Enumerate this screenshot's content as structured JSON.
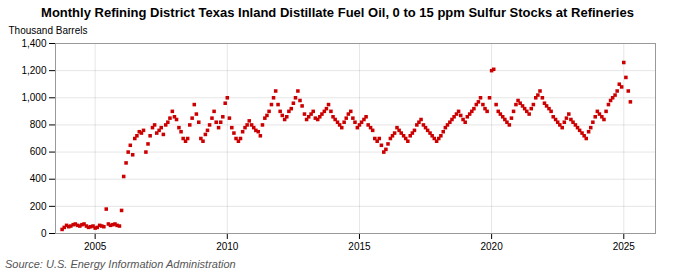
{
  "chart_data": {
    "type": "scatter",
    "title": "Monthly Refining District Texas Inland Distillate Fuel Oil, 0 to 15 ppm Sulfur Stocks at Refineries",
    "ylabel": "Thousand Barrels",
    "source": "Source: U.S. Energy Information Administration",
    "color": "#cc0000",
    "marker": "square",
    "grid": true,
    "xlim": [
      2003.5,
      2026.2
    ],
    "ylim": [
      0,
      1400
    ],
    "xticks": [
      2005,
      2010,
      2015,
      2020,
      2025
    ],
    "yticks": [
      0,
      200,
      400,
      600,
      800,
      {
        "value": 1000,
        "label": "1,000"
      },
      {
        "value": 1200,
        "label": "1,200"
      },
      {
        "value": 1400,
        "label": "1,400"
      }
    ],
    "x": [
      2003.75,
      2003.83,
      2003.92,
      2004.0,
      2004.08,
      2004.17,
      2004.25,
      2004.33,
      2004.42,
      2004.5,
      2004.58,
      2004.67,
      2004.75,
      2004.83,
      2004.92,
      2005.0,
      2005.08,
      2005.17,
      2005.25,
      2005.33,
      2005.42,
      2005.5,
      2005.58,
      2005.67,
      2005.75,
      2005.83,
      2005.92,
      2006.0,
      2006.08,
      2006.17,
      2006.25,
      2006.33,
      2006.42,
      2006.5,
      2006.58,
      2006.67,
      2006.75,
      2006.83,
      2006.92,
      2007.0,
      2007.08,
      2007.17,
      2007.25,
      2007.33,
      2007.42,
      2007.5,
      2007.58,
      2007.67,
      2007.75,
      2007.83,
      2007.92,
      2008.0,
      2008.08,
      2008.17,
      2008.25,
      2008.33,
      2008.42,
      2008.5,
      2008.58,
      2008.67,
      2008.75,
      2008.83,
      2008.92,
      2009.0,
      2009.08,
      2009.17,
      2009.25,
      2009.33,
      2009.42,
      2009.5,
      2009.58,
      2009.67,
      2009.75,
      2009.83,
      2009.92,
      2010.0,
      2010.08,
      2010.17,
      2010.25,
      2010.33,
      2010.42,
      2010.5,
      2010.58,
      2010.67,
      2010.75,
      2010.83,
      2010.92,
      2011.0,
      2011.08,
      2011.17,
      2011.25,
      2011.33,
      2011.42,
      2011.5,
      2011.58,
      2011.67,
      2011.75,
      2011.83,
      2011.92,
      2012.0,
      2012.08,
      2012.17,
      2012.25,
      2012.33,
      2012.42,
      2012.5,
      2012.58,
      2012.67,
      2012.75,
      2012.83,
      2012.92,
      2013.0,
      2013.08,
      2013.17,
      2013.25,
      2013.33,
      2013.42,
      2013.5,
      2013.58,
      2013.67,
      2013.75,
      2013.83,
      2013.92,
      2014.0,
      2014.08,
      2014.17,
      2014.25,
      2014.33,
      2014.42,
      2014.5,
      2014.58,
      2014.67,
      2014.75,
      2014.83,
      2014.92,
      2015.0,
      2015.08,
      2015.17,
      2015.25,
      2015.33,
      2015.42,
      2015.5,
      2015.58,
      2015.67,
      2015.75,
      2015.83,
      2015.92,
      2016.0,
      2016.08,
      2016.17,
      2016.25,
      2016.33,
      2016.42,
      2016.5,
      2016.58,
      2016.67,
      2016.75,
      2016.83,
      2016.92,
      2017.0,
      2017.08,
      2017.17,
      2017.25,
      2017.33,
      2017.42,
      2017.5,
      2017.58,
      2017.67,
      2017.75,
      2017.83,
      2017.92,
      2018.0,
      2018.08,
      2018.17,
      2018.25,
      2018.33,
      2018.42,
      2018.5,
      2018.58,
      2018.67,
      2018.75,
      2018.83,
      2018.92,
      2019.0,
      2019.08,
      2019.17,
      2019.25,
      2019.33,
      2019.42,
      2019.5,
      2019.58,
      2019.67,
      2019.75,
      2019.83,
      2019.92,
      2020.0,
      2020.08,
      2020.17,
      2020.25,
      2020.33,
      2020.42,
      2020.5,
      2020.58,
      2020.67,
      2020.75,
      2020.83,
      2020.92,
      2021.0,
      2021.08,
      2021.17,
      2021.25,
      2021.33,
      2021.42,
      2021.5,
      2021.58,
      2021.67,
      2021.75,
      2021.83,
      2021.92,
      2022.0,
      2022.08,
      2022.17,
      2022.25,
      2022.33,
      2022.42,
      2022.5,
      2022.58,
      2022.67,
      2022.75,
      2022.83,
      2022.92,
      2023.0,
      2023.08,
      2023.17,
      2023.25,
      2023.33,
      2023.42,
      2023.5,
      2023.58,
      2023.67,
      2023.75,
      2023.83,
      2023.92,
      2024.0,
      2024.08,
      2024.17,
      2024.25,
      2024.33,
      2024.42,
      2024.5,
      2024.58,
      2024.67,
      2024.75,
      2024.83,
      2024.92,
      2025.0,
      2025.08,
      2025.17,
      2025.25
    ],
    "values": [
      30,
      45,
      60,
      50,
      55,
      65,
      70,
      60,
      55,
      65,
      70,
      55,
      45,
      50,
      55,
      40,
      45,
      60,
      55,
      50,
      180,
      70,
      60,
      65,
      70,
      60,
      55,
      170,
      420,
      520,
      600,
      650,
      580,
      700,
      720,
      750,
      740,
      760,
      600,
      660,
      720,
      780,
      800,
      740,
      760,
      780,
      730,
      800,
      820,
      850,
      900,
      860,
      840,
      780,
      750,
      700,
      680,
      700,
      800,
      850,
      950,
      880,
      820,
      700,
      680,
      730,
      760,
      800,
      850,
      900,
      820,
      780,
      820,
      860,
      960,
      1000,
      850,
      780,
      740,
      700,
      680,
      700,
      750,
      780,
      800,
      830,
      800,
      780,
      760,
      750,
      720,
      800,
      850,
      870,
      900,
      950,
      1000,
      1050,
      950,
      900,
      870,
      840,
      860,
      900,
      920,
      960,
      1000,
      1050,
      980,
      940,
      880,
      840,
      860,
      880,
      900,
      850,
      840,
      860,
      880,
      900,
      920,
      950,
      900,
      860,
      840,
      820,
      800,
      780,
      820,
      850,
      880,
      900,
      850,
      820,
      780,
      800,
      820,
      840,
      860,
      800,
      780,
      760,
      700,
      680,
      700,
      650,
      600,
      620,
      660,
      700,
      720,
      740,
      780,
      760,
      740,
      720,
      700,
      680,
      720,
      740,
      760,
      800,
      820,
      840,
      800,
      780,
      760,
      740,
      720,
      700,
      680,
      700,
      720,
      750,
      780,
      800,
      820,
      840,
      860,
      880,
      900,
      870,
      840,
      820,
      860,
      880,
      900,
      920,
      950,
      970,
      1000,
      950,
      920,
      900,
      1000,
      1200,
      1210,
      950,
      900,
      880,
      860,
      840,
      820,
      800,
      850,
      900,
      950,
      980,
      960,
      940,
      920,
      900,
      880,
      920,
      950,
      1000,
      1020,
      1050,
      1000,
      960,
      940,
      920,
      900,
      860,
      840,
      820,
      800,
      780,
      820,
      850,
      880,
      840,
      820,
      800,
      780,
      760,
      740,
      720,
      700,
      750,
      780,
      820,
      860,
      900,
      880,
      860,
      840,
      900,
      950,
      980,
      1000,
      1020,
      1050,
      1100,
      1080,
      1260,
      1150,
      1050,
      970
    ]
  }
}
